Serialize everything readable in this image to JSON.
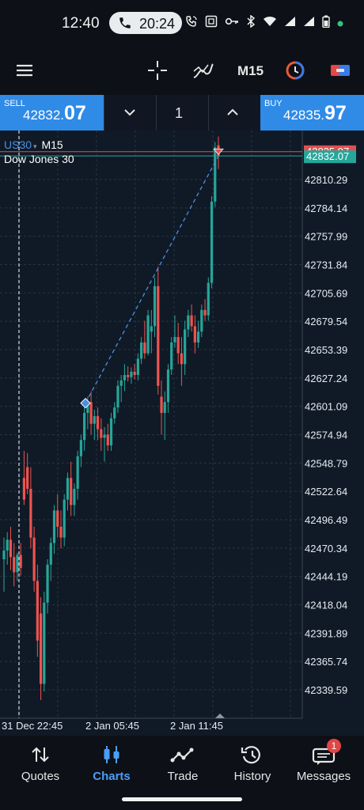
{
  "status_bar": {
    "time": "12:40",
    "call_duration": "20:24",
    "icons": [
      "phone-icon",
      "wifi-calling-icon",
      "nfc-icon",
      "key-icon",
      "bluetooth-icon",
      "wifi-icon",
      "signal-icon",
      "signal-icon",
      "battery-icon",
      "dot-icon"
    ]
  },
  "toolbar": {
    "menu_icon": "hamburger-icon",
    "crosshair_icon": "crosshair-icon",
    "indicators_icon": "indicator-icon",
    "timeframe": "M15",
    "timer_icon": "clock-icon",
    "trade_icon": "trade-toggle-icon"
  },
  "trade_panel": {
    "sell_label": "SELL",
    "sell_price_prefix": "42832.",
    "sell_price_big": "07",
    "buy_label": "BUY",
    "buy_price_prefix": "42835.",
    "buy_price_big": "97",
    "lot": "1"
  },
  "chart": {
    "symbol": "US30",
    "timeframe": "M15",
    "name": "Dow Jones 30"
  },
  "chart_data": {
    "type": "candlestick",
    "y_ticks": [
      "42810.29",
      "42784.14",
      "42757.99",
      "42731.84",
      "42705.69",
      "42679.54",
      "42653.39",
      "42627.24",
      "42601.09",
      "42574.94",
      "42548.79",
      "42522.64",
      "42496.49",
      "42470.34",
      "42444.19",
      "42418.04",
      "42391.89",
      "42365.74",
      "42339.59"
    ],
    "ylim": [
      42322,
      42845
    ],
    "x_ticks": [
      "31 Dec 22:45",
      "2 Jan 05:45",
      "2 Jan 11:45"
    ],
    "ask_price": "42835.97",
    "bid_price": "42832.07",
    "trade_line": {
      "from": 42604,
      "to": 42832
    },
    "grid": true,
    "colors": {
      "up": "#26a69a",
      "down": "#ef5350",
      "bid": "#26a69a",
      "ask": "#e05050",
      "trade_line": "#4a90e2"
    },
    "candles": [
      {
        "o": 42460,
        "h": 42480,
        "l": 42430,
        "c": 42468
      },
      {
        "o": 42468,
        "h": 42485,
        "l": 42455,
        "c": 42478
      },
      {
        "o": 42478,
        "h": 42490,
        "l": 42450,
        "c": 42462
      },
      {
        "o": 42462,
        "h": 42475,
        "l": 42435,
        "c": 42448
      },
      {
        "o": 42448,
        "h": 42466,
        "l": 42440,
        "c": 42464
      },
      {
        "o": 42464,
        "h": 42475,
        "l": 42445,
        "c": 42452
      },
      {
        "o": 42535,
        "h": 42560,
        "l": 42510,
        "c": 42515
      },
      {
        "o": 42545,
        "h": 42558,
        "l": 42520,
        "c": 42525
      },
      {
        "o": 42525,
        "h": 42545,
        "l": 42470,
        "c": 42480
      },
      {
        "o": 42480,
        "h": 42490,
        "l": 42430,
        "c": 42440
      },
      {
        "o": 42440,
        "h": 42455,
        "l": 42370,
        "c": 42385
      },
      {
        "o": 42410,
        "h": 42425,
        "l": 42330,
        "c": 42345
      },
      {
        "o": 42345,
        "h": 42430,
        "l": 42338,
        "c": 42420
      },
      {
        "o": 42420,
        "h": 42460,
        "l": 42410,
        "c": 42455
      },
      {
        "o": 42455,
        "h": 42480,
        "l": 42440,
        "c": 42475
      },
      {
        "o": 42475,
        "h": 42510,
        "l": 42465,
        "c": 42505
      },
      {
        "o": 42505,
        "h": 42520,
        "l": 42480,
        "c": 42490
      },
      {
        "o": 42490,
        "h": 42505,
        "l": 42470,
        "c": 42480
      },
      {
        "o": 42480,
        "h": 42520,
        "l": 42472,
        "c": 42515
      },
      {
        "o": 42515,
        "h": 42540,
        "l": 42505,
        "c": 42535
      },
      {
        "o": 42535,
        "h": 42550,
        "l": 42500,
        "c": 42510
      },
      {
        "o": 42510,
        "h": 42530,
        "l": 42500,
        "c": 42525
      },
      {
        "o": 42525,
        "h": 42560,
        "l": 42515,
        "c": 42555
      },
      {
        "o": 42555,
        "h": 42575,
        "l": 42545,
        "c": 42570
      },
      {
        "o": 42570,
        "h": 42600,
        "l": 42560,
        "c": 42595
      },
      {
        "o": 42595,
        "h": 42610,
        "l": 42580,
        "c": 42605
      },
      {
        "o": 42605,
        "h": 42615,
        "l": 42575,
        "c": 42585
      },
      {
        "o": 42585,
        "h": 42598,
        "l": 42570,
        "c": 42592
      },
      {
        "o": 42592,
        "h": 42600,
        "l": 42570,
        "c": 42580
      },
      {
        "o": 42580,
        "h": 42590,
        "l": 42560,
        "c": 42572
      },
      {
        "o": 42572,
        "h": 42582,
        "l": 42550,
        "c": 42575
      },
      {
        "o": 42575,
        "h": 42585,
        "l": 42560,
        "c": 42565
      },
      {
        "o": 42565,
        "h": 42595,
        "l": 42560,
        "c": 42590
      },
      {
        "o": 42590,
        "h": 42605,
        "l": 42585,
        "c": 42600
      },
      {
        "o": 42600,
        "h": 42625,
        "l": 42595,
        "c": 42620
      },
      {
        "o": 42620,
        "h": 42630,
        "l": 42605,
        "c": 42625
      },
      {
        "o": 42625,
        "h": 42640,
        "l": 42615,
        "c": 42630
      },
      {
        "o": 42630,
        "h": 42638,
        "l": 42624,
        "c": 42628
      },
      {
        "o": 42628,
        "h": 42637,
        "l": 42622,
        "c": 42633
      },
      {
        "o": 42633,
        "h": 42640,
        "l": 42626,
        "c": 42630
      },
      {
        "o": 42630,
        "h": 42650,
        "l": 42625,
        "c": 42645
      },
      {
        "o": 42645,
        "h": 42665,
        "l": 42640,
        "c": 42660
      },
      {
        "o": 42660,
        "h": 42680,
        "l": 42645,
        "c": 42650
      },
      {
        "o": 42650,
        "h": 42690,
        "l": 42648,
        "c": 42685
      },
      {
        "o": 42670,
        "h": 42690,
        "l": 42650,
        "c": 42675
      },
      {
        "o": 42675,
        "h": 42720,
        "l": 42665,
        "c": 42712
      },
      {
        "o": 42712,
        "h": 42730,
        "l": 42612,
        "c": 42620
      },
      {
        "o": 42610,
        "h": 42625,
        "l": 42575,
        "c": 42595
      },
      {
        "o": 42595,
        "h": 42615,
        "l": 42570,
        "c": 42605
      },
      {
        "o": 42605,
        "h": 42640,
        "l": 42595,
        "c": 42635
      },
      {
        "o": 42635,
        "h": 42665,
        "l": 42630,
        "c": 42660
      },
      {
        "o": 42660,
        "h": 42685,
        "l": 42655,
        "c": 42665
      },
      {
        "o": 42665,
        "h": 42678,
        "l": 42640,
        "c": 42650
      },
      {
        "o": 42650,
        "h": 42665,
        "l": 42620,
        "c": 42640
      },
      {
        "o": 42640,
        "h": 42680,
        "l": 42630,
        "c": 42672
      },
      {
        "o": 42672,
        "h": 42690,
        "l": 42665,
        "c": 42685
      },
      {
        "o": 42685,
        "h": 42695,
        "l": 42670,
        "c": 42675
      },
      {
        "o": 42675,
        "h": 42685,
        "l": 42650,
        "c": 42660
      },
      {
        "o": 42660,
        "h": 42680,
        "l": 42655,
        "c": 42670
      },
      {
        "o": 42670,
        "h": 42695,
        "l": 42665,
        "c": 42690
      },
      {
        "o": 42690,
        "h": 42700,
        "l": 42680,
        "c": 42685
      },
      {
        "o": 42685,
        "h": 42720,
        "l": 42680,
        "c": 42715
      },
      {
        "o": 42715,
        "h": 42795,
        "l": 42710,
        "c": 42790
      },
      {
        "o": 42790,
        "h": 42845,
        "l": 42785,
        "c": 42840
      },
      {
        "o": 42842,
        "h": 42850,
        "l": 42820,
        "c": 42832
      }
    ]
  },
  "tabs": [
    {
      "label": "Quotes",
      "icon": "quotes-icon",
      "active": false
    },
    {
      "label": "Charts",
      "icon": "charts-icon",
      "active": true
    },
    {
      "label": "Trade",
      "icon": "trade-icon",
      "active": false
    },
    {
      "label": "History",
      "icon": "history-icon",
      "active": false
    },
    {
      "label": "Messages",
      "icon": "messages-icon",
      "active": false,
      "badge": "1"
    }
  ]
}
